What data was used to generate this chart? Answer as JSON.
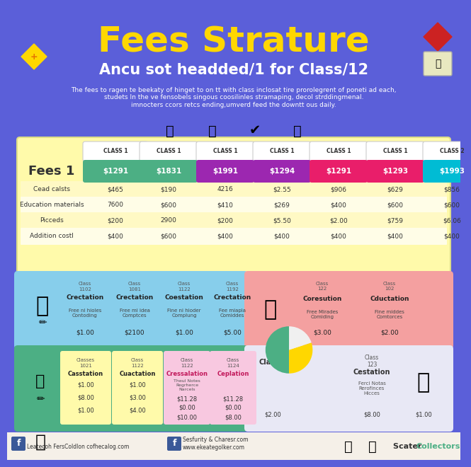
{
  "bg_color": "#5B5FD9",
  "title": "Fees Strature",
  "subtitle": "Ancu sot headded/1 for Class/12",
  "description": "The fees to ragen te beekaty of hinget to on tt with class inclosat tire prorolegrent of poneti ad each,\nstudets In the ve fensobels singous coosilinles stramaping, decol strddingmenal.\nimnocters ccors retcs ending,umverd feed the downtt ous daily.",
  "table_headers": [
    "CLASS 1",
    "CLASS 1",
    "CLASS 1",
    "CLASS 1",
    "CLASS 1",
    "CLASS 1",
    "CLASS 2"
  ],
  "fees_row": [
    "$1291",
    "$1831",
    "$1991",
    "$1294",
    "$1291",
    "$1293",
    "$1993"
  ],
  "fees_colors": [
    "#4CAF84",
    "#4CAF84",
    "#9C27B0",
    "#9C27B0",
    "#E91E6A",
    "#E91E6A",
    "#00BCD4"
  ],
  "row_labels": [
    "Cead calsts",
    "Education materials",
    "Picceds",
    "Addition costl"
  ],
  "row_data": [
    [
      "$465",
      "$190",
      "4216",
      "$2.55",
      "$906",
      "$629",
      "$856"
    ],
    [
      "7600",
      "$600",
      "$410",
      "$269",
      "$400",
      "$600",
      "$600"
    ],
    [
      "$200",
      "2900",
      "$200",
      "$5.50",
      "$2.00",
      "$759",
      "$6.06"
    ],
    [
      "$400",
      "$600",
      "$400",
      "$400",
      "$400",
      "$400",
      "$400"
    ]
  ],
  "footer_texts": [
    "Leatecoh FersColdlon cofhecalog.com",
    "Sesfurity & Charesr.com\nwww.ekeategolker.com",
    "Scater Collectors"
  ]
}
